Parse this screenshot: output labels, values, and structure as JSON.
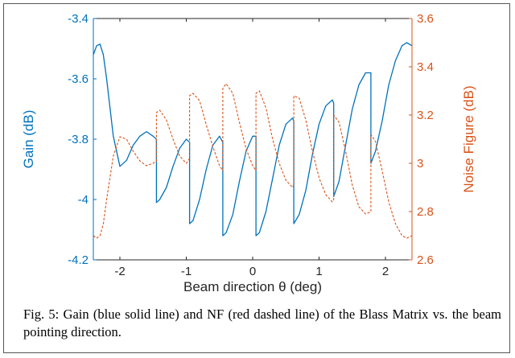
{
  "chart_data": {
    "type": "line",
    "xlabel": "Beam direction θ (deg)",
    "ylabel_left": "Gain (dB)",
    "ylabel_right": "Noise Figure (dB)",
    "xlim": [
      -2.4,
      2.4
    ],
    "ylim_left": [
      -4.2,
      -3.4
    ],
    "ylim_right": [
      2.6,
      3.6
    ],
    "xticks": [
      -2,
      -1,
      0,
      1,
      2
    ],
    "yticks_left": [
      -4.2,
      -4,
      -3.8,
      -3.6,
      -3.4
    ],
    "yticks_right": [
      2.6,
      2.8,
      3,
      3.2,
      3.4,
      3.6
    ],
    "colors": {
      "gain": "#0072BD",
      "nf": "#D95319",
      "axis": "#262626"
    },
    "series": [
      {
        "line_style": "solid",
        "axis": "left",
        "segments": [
          {
            "x": [
              -2.4,
              -2.35,
              -2.3,
              -2.25,
              -2.2,
              -2.1,
              -2.0,
              -1.9,
              -1.8,
              -1.7,
              -1.6,
              -1.5,
              -1.45
            ],
            "y": [
              -3.52,
              -3.49,
              -3.485,
              -3.52,
              -3.6,
              -3.79,
              -3.89,
              -3.87,
              -3.82,
              -3.79,
              -3.775,
              -3.79,
              -3.8
            ]
          },
          {
            "x": [
              -1.45,
              -1.4,
              -1.3,
              -1.2,
              -1.1,
              -1.0,
              -0.95
            ],
            "y": [
              -4.01,
              -4.0,
              -3.96,
              -3.89,
              -3.83,
              -3.8,
              -3.81
            ]
          },
          {
            "x": [
              -0.95,
              -0.9,
              -0.8,
              -0.7,
              -0.6,
              -0.5,
              -0.45
            ],
            "y": [
              -4.08,
              -4.07,
              -4.0,
              -3.9,
              -3.82,
              -3.79,
              -3.81
            ]
          },
          {
            "x": [
              -0.45,
              -0.4,
              -0.3,
              -0.2,
              -0.1,
              0.0,
              0.05
            ],
            "y": [
              -4.12,
              -4.11,
              -4.05,
              -3.94,
              -3.84,
              -3.79,
              -3.79
            ]
          },
          {
            "x": [
              0.05,
              0.1,
              0.2,
              0.3,
              0.4,
              0.5,
              0.6,
              0.62
            ],
            "y": [
              -4.12,
              -4.11,
              -4.04,
              -3.93,
              -3.82,
              -3.75,
              -3.73,
              -3.74
            ]
          },
          {
            "x": [
              0.62,
              0.7,
              0.8,
              0.9,
              1.0,
              1.1,
              1.2,
              1.22
            ],
            "y": [
              -4.08,
              -4.05,
              -3.97,
              -3.85,
              -3.75,
              -3.69,
              -3.67,
              -3.68
            ]
          },
          {
            "x": [
              1.22,
              1.3,
              1.4,
              1.5,
              1.6,
              1.7,
              1.78
            ],
            "y": [
              -3.99,
              -3.94,
              -3.82,
              -3.7,
              -3.62,
              -3.58,
              -3.58
            ]
          },
          {
            "x": [
              1.78,
              1.85,
              1.95,
              2.05,
              2.15,
              2.25,
              2.32,
              2.4
            ],
            "y": [
              -3.88,
              -3.84,
              -3.74,
              -3.62,
              -3.54,
              -3.49,
              -3.48,
              -3.49
            ]
          }
        ]
      },
      {
        "line_style": "dashed",
        "axis": "right",
        "segments": [
          {
            "x": [
              -2.4,
              -2.35,
              -2.3,
              -2.25,
              -2.2,
              -2.1,
              -2.0,
              -1.9,
              -1.8,
              -1.7,
              -1.6,
              -1.5,
              -1.45
            ],
            "y": [
              2.7,
              2.69,
              2.7,
              2.75,
              2.85,
              3.03,
              3.11,
              3.1,
              3.05,
              3.01,
              2.99,
              3.0,
              3.01
            ]
          },
          {
            "x": [
              -1.45,
              -1.4,
              -1.3,
              -1.2,
              -1.1,
              -1.0,
              -0.95
            ],
            "y": [
              3.21,
              3.22,
              3.18,
              3.1,
              3.03,
              3.0,
              3.02
            ]
          },
          {
            "x": [
              -0.95,
              -0.9,
              -0.8,
              -0.7,
              -0.6,
              -0.5,
              -0.45
            ],
            "y": [
              3.28,
              3.29,
              3.26,
              3.16,
              3.07,
              2.99,
              2.97
            ]
          },
          {
            "x": [
              -0.45,
              -0.4,
              -0.3,
              -0.2,
              -0.1,
              0.0,
              0.05
            ],
            "y": [
              3.31,
              3.33,
              3.29,
              3.17,
              3.06,
              2.99,
              2.97
            ]
          },
          {
            "x": [
              0.05,
              0.1,
              0.2,
              0.3,
              0.4,
              0.5,
              0.6,
              0.62
            ],
            "y": [
              3.29,
              3.3,
              3.23,
              3.1,
              3.0,
              2.93,
              2.9,
              2.91
            ]
          },
          {
            "x": [
              0.62,
              0.7,
              0.8,
              0.9,
              1.0,
              1.1,
              1.2,
              1.22
            ],
            "y": [
              3.28,
              3.27,
              3.18,
              3.05,
              2.94,
              2.87,
              2.84,
              2.85
            ]
          },
          {
            "x": [
              1.22,
              1.3,
              1.4,
              1.5,
              1.6,
              1.7,
              1.78
            ],
            "y": [
              3.2,
              3.17,
              3.05,
              2.91,
              2.82,
              2.79,
              2.8
            ]
          },
          {
            "x": [
              1.78,
              1.85,
              1.95,
              2.05,
              2.15,
              2.25,
              2.32,
              2.4
            ],
            "y": [
              3.12,
              3.09,
              2.97,
              2.84,
              2.75,
              2.7,
              2.69,
              2.7
            ]
          }
        ]
      }
    ]
  },
  "caption": "Fig. 5: Gain (blue solid line) and NF (red dashed line) of the Blass Matrix vs. the beam pointing direction."
}
